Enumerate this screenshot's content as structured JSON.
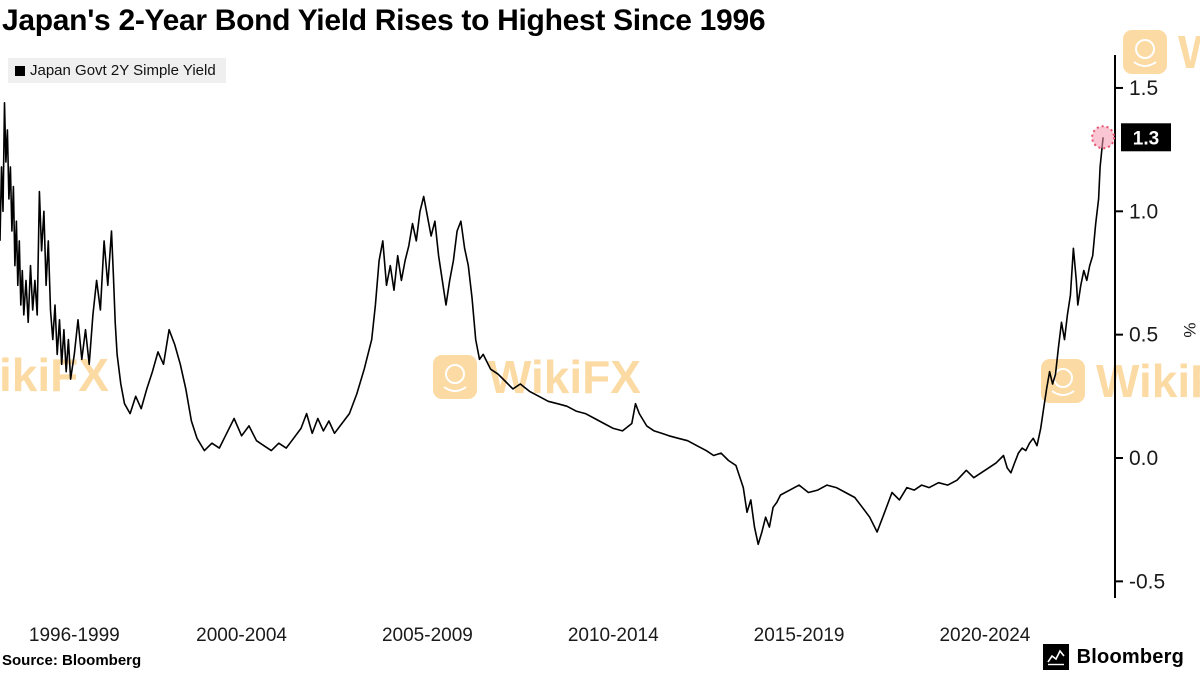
{
  "title": "Japan's 2-Year Bond Yield Rises to Highest Since 1996",
  "legend": {
    "label": "Japan Govt 2Y Simple Yield",
    "swatch_color": "#000000"
  },
  "source": "Source: Bloomberg",
  "branding": {
    "logo_text": "Bloomberg"
  },
  "watermark": {
    "text": "WikiFX",
    "color": "#F6A723"
  },
  "chart_data": {
    "type": "line",
    "title": "Japan's 2-Year Bond Yield Rises to Highest Since 1996",
    "xlabel": "",
    "ylabel": "%",
    "y_axis_unit": "%",
    "y_axis_side": "right",
    "grid": false,
    "legend_position": "top-left",
    "x_domain": [
      1996,
      2026
    ],
    "ylim": [
      -0.57,
      1.63
    ],
    "y_ticks": [
      {
        "value": 1.5,
        "label": "1.5"
      },
      {
        "value": 1.0,
        "label": "1.0"
      },
      {
        "value": 0.5,
        "label": "0.5"
      },
      {
        "value": 0.0,
        "label": "0.0"
      },
      {
        "value": -0.5,
        "label": "-0.5"
      }
    ],
    "x_ticks": [
      {
        "label": "1996-1999",
        "center_year": 1998.0
      },
      {
        "label": "2000-2004",
        "center_year": 2002.5
      },
      {
        "label": "2005-2009",
        "center_year": 2007.5
      },
      {
        "label": "2010-2014",
        "center_year": 2012.5
      },
      {
        "label": "2015-2019",
        "center_year": 2017.5
      },
      {
        "label": "2020-2024",
        "center_year": 2022.5
      }
    ],
    "last_value": {
      "value": 1.3,
      "label": "1.3",
      "marker_fill": "rgba(247,151,175,0.55)",
      "ring_color": "#E8506E"
    },
    "series": [
      {
        "name": "Japan Govt 2Y Simple Yield",
        "color": "#000000",
        "points": [
          [
            1996.0,
            0.88
          ],
          [
            1996.04,
            1.18
          ],
          [
            1996.08,
            1.0
          ],
          [
            1996.12,
            1.44
          ],
          [
            1996.16,
            1.2
          ],
          [
            1996.2,
            1.33
          ],
          [
            1996.24,
            1.05
          ],
          [
            1996.28,
            1.18
          ],
          [
            1996.32,
            0.92
          ],
          [
            1996.36,
            1.1
          ],
          [
            1996.4,
            0.78
          ],
          [
            1996.44,
            0.96
          ],
          [
            1996.48,
            0.7
          ],
          [
            1996.52,
            0.88
          ],
          [
            1996.56,
            0.62
          ],
          [
            1996.6,
            0.76
          ],
          [
            1996.64,
            0.58
          ],
          [
            1996.7,
            0.72
          ],
          [
            1996.76,
            0.55
          ],
          [
            1996.82,
            0.78
          ],
          [
            1996.88,
            0.6
          ],
          [
            1996.94,
            0.72
          ],
          [
            1997.0,
            0.58
          ],
          [
            1997.06,
            1.08
          ],
          [
            1997.12,
            0.84
          ],
          [
            1997.18,
            1.0
          ],
          [
            1997.24,
            0.7
          ],
          [
            1997.3,
            0.88
          ],
          [
            1997.36,
            0.6
          ],
          [
            1997.42,
            0.48
          ],
          [
            1997.48,
            0.62
          ],
          [
            1997.54,
            0.42
          ],
          [
            1997.6,
            0.56
          ],
          [
            1997.66,
            0.38
          ],
          [
            1997.72,
            0.52
          ],
          [
            1997.78,
            0.35
          ],
          [
            1997.84,
            0.48
          ],
          [
            1997.9,
            0.32
          ],
          [
            1998.0,
            0.42
          ],
          [
            1998.1,
            0.56
          ],
          [
            1998.2,
            0.4
          ],
          [
            1998.3,
            0.52
          ],
          [
            1998.4,
            0.38
          ],
          [
            1998.5,
            0.58
          ],
          [
            1998.6,
            0.72
          ],
          [
            1998.7,
            0.6
          ],
          [
            1998.8,
            0.88
          ],
          [
            1998.9,
            0.7
          ],
          [
            1999.0,
            0.92
          ],
          [
            1999.05,
            0.74
          ],
          [
            1999.1,
            0.55
          ],
          [
            1999.15,
            0.42
          ],
          [
            1999.25,
            0.3
          ],
          [
            1999.35,
            0.22
          ],
          [
            1999.5,
            0.18
          ],
          [
            1999.65,
            0.25
          ],
          [
            1999.8,
            0.2
          ],
          [
            1999.95,
            0.28
          ],
          [
            2000.1,
            0.35
          ],
          [
            2000.25,
            0.43
          ],
          [
            2000.4,
            0.38
          ],
          [
            2000.55,
            0.52
          ],
          [
            2000.7,
            0.46
          ],
          [
            2000.85,
            0.38
          ],
          [
            2001.0,
            0.28
          ],
          [
            2001.15,
            0.15
          ],
          [
            2001.3,
            0.08
          ],
          [
            2001.5,
            0.03
          ],
          [
            2001.7,
            0.06
          ],
          [
            2001.9,
            0.04
          ],
          [
            2002.1,
            0.1
          ],
          [
            2002.3,
            0.16
          ],
          [
            2002.5,
            0.09
          ],
          [
            2002.7,
            0.13
          ],
          [
            2002.9,
            0.07
          ],
          [
            2003.1,
            0.05
          ],
          [
            2003.3,
            0.03
          ],
          [
            2003.5,
            0.06
          ],
          [
            2003.7,
            0.04
          ],
          [
            2003.9,
            0.08
          ],
          [
            2004.1,
            0.12
          ],
          [
            2004.25,
            0.18
          ],
          [
            2004.4,
            0.1
          ],
          [
            2004.55,
            0.16
          ],
          [
            2004.7,
            0.11
          ],
          [
            2004.85,
            0.15
          ],
          [
            2005.0,
            0.1
          ],
          [
            2005.2,
            0.14
          ],
          [
            2005.4,
            0.18
          ],
          [
            2005.6,
            0.26
          ],
          [
            2005.8,
            0.36
          ],
          [
            2006.0,
            0.48
          ],
          [
            2006.1,
            0.62
          ],
          [
            2006.2,
            0.8
          ],
          [
            2006.3,
            0.88
          ],
          [
            2006.4,
            0.7
          ],
          [
            2006.5,
            0.78
          ],
          [
            2006.6,
            0.68
          ],
          [
            2006.7,
            0.82
          ],
          [
            2006.8,
            0.72
          ],
          [
            2006.9,
            0.8
          ],
          [
            2007.0,
            0.86
          ],
          [
            2007.1,
            0.95
          ],
          [
            2007.2,
            0.88
          ],
          [
            2007.3,
            1.0
          ],
          [
            2007.4,
            1.06
          ],
          [
            2007.5,
            0.98
          ],
          [
            2007.6,
            0.9
          ],
          [
            2007.7,
            0.96
          ],
          [
            2007.8,
            0.82
          ],
          [
            2007.9,
            0.72
          ],
          [
            2008.0,
            0.62
          ],
          [
            2008.1,
            0.72
          ],
          [
            2008.2,
            0.8
          ],
          [
            2008.3,
            0.92
          ],
          [
            2008.4,
            0.96
          ],
          [
            2008.5,
            0.85
          ],
          [
            2008.6,
            0.78
          ],
          [
            2008.7,
            0.65
          ],
          [
            2008.8,
            0.48
          ],
          [
            2008.9,
            0.4
          ],
          [
            2009.0,
            0.42
          ],
          [
            2009.2,
            0.36
          ],
          [
            2009.4,
            0.34
          ],
          [
            2009.6,
            0.31
          ],
          [
            2009.8,
            0.28
          ],
          [
            2010.0,
            0.3
          ],
          [
            2010.25,
            0.27
          ],
          [
            2010.5,
            0.25
          ],
          [
            2010.75,
            0.23
          ],
          [
            2011.0,
            0.22
          ],
          [
            2011.25,
            0.21
          ],
          [
            2011.5,
            0.19
          ],
          [
            2011.75,
            0.18
          ],
          [
            2012.0,
            0.16
          ],
          [
            2012.25,
            0.14
          ],
          [
            2012.5,
            0.12
          ],
          [
            2012.75,
            0.11
          ],
          [
            2013.0,
            0.14
          ],
          [
            2013.1,
            0.22
          ],
          [
            2013.2,
            0.18
          ],
          [
            2013.4,
            0.13
          ],
          [
            2013.6,
            0.11
          ],
          [
            2013.8,
            0.1
          ],
          [
            2014.0,
            0.09
          ],
          [
            2014.25,
            0.08
          ],
          [
            2014.5,
            0.07
          ],
          [
            2014.75,
            0.05
          ],
          [
            2015.0,
            0.03
          ],
          [
            2015.2,
            0.01
          ],
          [
            2015.4,
            0.02
          ],
          [
            2015.6,
            -0.01
          ],
          [
            2015.8,
            -0.03
          ],
          [
            2016.0,
            -0.12
          ],
          [
            2016.1,
            -0.22
          ],
          [
            2016.2,
            -0.17
          ],
          [
            2016.3,
            -0.28
          ],
          [
            2016.4,
            -0.35
          ],
          [
            2016.5,
            -0.3
          ],
          [
            2016.6,
            -0.24
          ],
          [
            2016.7,
            -0.28
          ],
          [
            2016.8,
            -0.2
          ],
          [
            2016.9,
            -0.18
          ],
          [
            2017.0,
            -0.15
          ],
          [
            2017.25,
            -0.13
          ],
          [
            2017.5,
            -0.11
          ],
          [
            2017.75,
            -0.14
          ],
          [
            2018.0,
            -0.13
          ],
          [
            2018.25,
            -0.11
          ],
          [
            2018.5,
            -0.12
          ],
          [
            2018.75,
            -0.14
          ],
          [
            2019.0,
            -0.16
          ],
          [
            2019.2,
            -0.2
          ],
          [
            2019.4,
            -0.24
          ],
          [
            2019.6,
            -0.3
          ],
          [
            2019.8,
            -0.22
          ],
          [
            2020.0,
            -0.14
          ],
          [
            2020.2,
            -0.17
          ],
          [
            2020.4,
            -0.12
          ],
          [
            2020.6,
            -0.13
          ],
          [
            2020.8,
            -0.11
          ],
          [
            2021.0,
            -0.12
          ],
          [
            2021.25,
            -0.1
          ],
          [
            2021.5,
            -0.11
          ],
          [
            2021.75,
            -0.09
          ],
          [
            2022.0,
            -0.05
          ],
          [
            2022.2,
            -0.08
          ],
          [
            2022.4,
            -0.06
          ],
          [
            2022.6,
            -0.04
          ],
          [
            2022.8,
            -0.02
          ],
          [
            2023.0,
            0.01
          ],
          [
            2023.1,
            -0.04
          ],
          [
            2023.2,
            -0.06
          ],
          [
            2023.3,
            -0.02
          ],
          [
            2023.4,
            0.02
          ],
          [
            2023.5,
            0.04
          ],
          [
            2023.6,
            0.03
          ],
          [
            2023.7,
            0.06
          ],
          [
            2023.8,
            0.08
          ],
          [
            2023.9,
            0.05
          ],
          [
            2024.0,
            0.12
          ],
          [
            2024.08,
            0.2
          ],
          [
            2024.16,
            0.28
          ],
          [
            2024.24,
            0.35
          ],
          [
            2024.32,
            0.3
          ],
          [
            2024.4,
            0.34
          ],
          [
            2024.48,
            0.45
          ],
          [
            2024.56,
            0.55
          ],
          [
            2024.64,
            0.48
          ],
          [
            2024.72,
            0.58
          ],
          [
            2024.8,
            0.66
          ],
          [
            2024.88,
            0.85
          ],
          [
            2024.96,
            0.72
          ],
          [
            2025.0,
            0.62
          ],
          [
            2025.08,
            0.7
          ],
          [
            2025.16,
            0.76
          ],
          [
            2025.24,
            0.72
          ],
          [
            2025.32,
            0.78
          ],
          [
            2025.4,
            0.82
          ],
          [
            2025.48,
            0.95
          ],
          [
            2025.56,
            1.05
          ],
          [
            2025.6,
            1.18
          ],
          [
            2025.64,
            1.24
          ],
          [
            2025.68,
            1.3
          ]
        ]
      }
    ]
  }
}
